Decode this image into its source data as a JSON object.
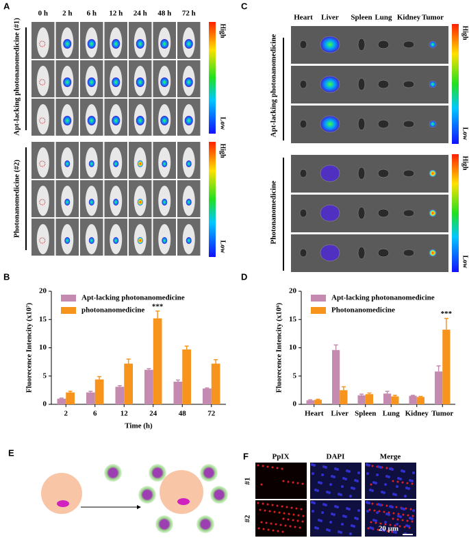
{
  "panel_letters": [
    "A",
    "B",
    "C",
    "D",
    "E",
    "F"
  ],
  "panel_a": {
    "time_labels": [
      "0 h",
      "2 h",
      "6 h",
      "12 h",
      "24 h",
      "48 h",
      "72 h"
    ],
    "group_labels": [
      "Apt-lacking photonanomedicine (#1)",
      "Photonanomedicine (#2)"
    ],
    "scale_high": "High",
    "scale_low": "Low"
  },
  "panel_c": {
    "organ_labels": [
      "Heart",
      "Liver",
      "Spleen",
      "Lung",
      "Kidney",
      "Tumor"
    ],
    "group_labels": [
      "Apt-lacking photonanomedicine",
      "Photonanomedicine"
    ],
    "scale_high": "High",
    "scale_low": "Low"
  },
  "panel_f": {
    "column_labels": [
      "PpIX",
      "DAPI",
      "Merge"
    ],
    "row_labels": [
      "#1",
      "#2"
    ],
    "scale_bar": "20 μm"
  },
  "chart_data": [
    {
      "type": "bar",
      "y_label": "Fluorecence Intencity (x10⁷)",
      "x_label": "Time (h)",
      "categories": [
        "2",
        "6",
        "12",
        "24",
        "48",
        "72"
      ],
      "series": [
        {
          "name": "Apt-lacking photonanomedicine",
          "color": "#c48aaf",
          "values": [
            1.0,
            2.1,
            3.1,
            6.1,
            4.0,
            2.8
          ],
          "errors": [
            0.1,
            0.2,
            0.2,
            0.2,
            0.3,
            0.1
          ]
        },
        {
          "name": "photonanomedicine",
          "color": "#f7941d",
          "values": [
            2.1,
            4.4,
            7.2,
            15.2,
            9.7,
            7.2
          ],
          "errors": [
            0.2,
            0.5,
            0.8,
            1.3,
            0.6,
            0.7
          ]
        }
      ],
      "annotations": [
        {
          "text": "***",
          "category": "24"
        }
      ],
      "ylim": [
        0,
        20
      ],
      "yticks": [
        0,
        5,
        10,
        15,
        20
      ],
      "legend": "upper left"
    },
    {
      "type": "bar",
      "y_label": "Fluorecence Intencity (x10⁶)",
      "categories": [
        "Heart",
        "Liver",
        "Spleen",
        "Lung",
        "Kidney",
        "Tumor"
      ],
      "series": [
        {
          "name": "Apt-lacking photonanomedicine",
          "color": "#c48aaf",
          "values": [
            0.7,
            9.6,
            1.6,
            1.9,
            1.5,
            5.8
          ],
          "errors": [
            0.1,
            0.9,
            0.2,
            0.4,
            0.1,
            1.0
          ]
        },
        {
          "name": "Photonanomedicine",
          "color": "#f7941d",
          "values": [
            0.8,
            2.5,
            1.8,
            1.4,
            1.3,
            13.2
          ],
          "errors": [
            0.1,
            0.6,
            0.2,
            0.2,
            0.1,
            2.0
          ]
        }
      ],
      "annotations": [
        {
          "text": "***",
          "category": "Tumor"
        }
      ],
      "ylim": [
        0,
        20
      ],
      "yticks": [
        0,
        5,
        10,
        15,
        20
      ],
      "legend": "upper left"
    }
  ]
}
